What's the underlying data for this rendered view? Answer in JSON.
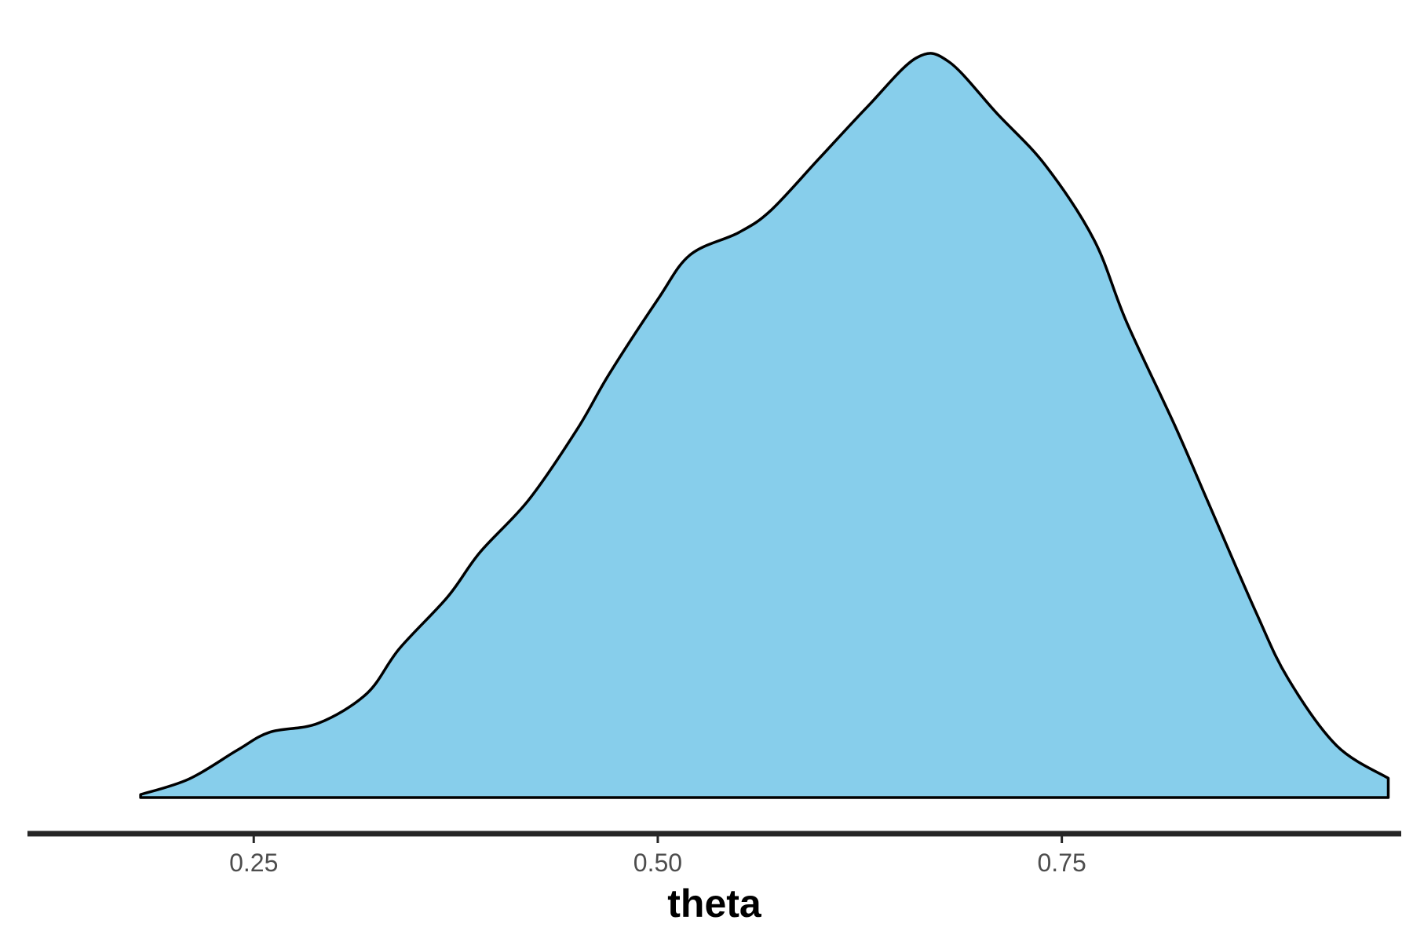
{
  "chart_data": {
    "type": "area",
    "title": "",
    "xlabel": "theta",
    "ylabel": "",
    "xlim": [
      0.11,
      0.96
    ],
    "ylim": [
      0,
      1
    ],
    "x_ticks": [
      0.25,
      0.5,
      0.75
    ],
    "x_tick_labels": [
      "0.25",
      "0.50",
      "0.75"
    ],
    "y_axis_shown": false,
    "grid": false,
    "legend": "none",
    "colors": {
      "fill": "#87CEEB",
      "outline": "#000000",
      "axis": "#262626",
      "tick_label": "#4d4d4d"
    },
    "series": [
      {
        "x": [
          0.18,
          0.21,
          0.24,
          0.26,
          0.29,
          0.32,
          0.34,
          0.37,
          0.39,
          0.42,
          0.45,
          0.47,
          0.5,
          0.52,
          0.55,
          0.57,
          0.6,
          0.63,
          0.66,
          0.68,
          0.71,
          0.74,
          0.77,
          0.79,
          0.82,
          0.84,
          0.87,
          0.89,
          0.92,
          0.952,
          0.952
        ],
        "y": [
          0.004,
          0.025,
          0.064,
          0.088,
          0.1,
          0.14,
          0.2,
          0.27,
          0.33,
          0.4,
          0.495,
          0.57,
          0.67,
          0.73,
          0.76,
          0.79,
          0.86,
          0.93,
          0.995,
          0.99,
          0.92,
          0.85,
          0.75,
          0.64,
          0.5,
          0.4,
          0.25,
          0.16,
          0.07,
          0.026,
          0
        ]
      }
    ]
  }
}
